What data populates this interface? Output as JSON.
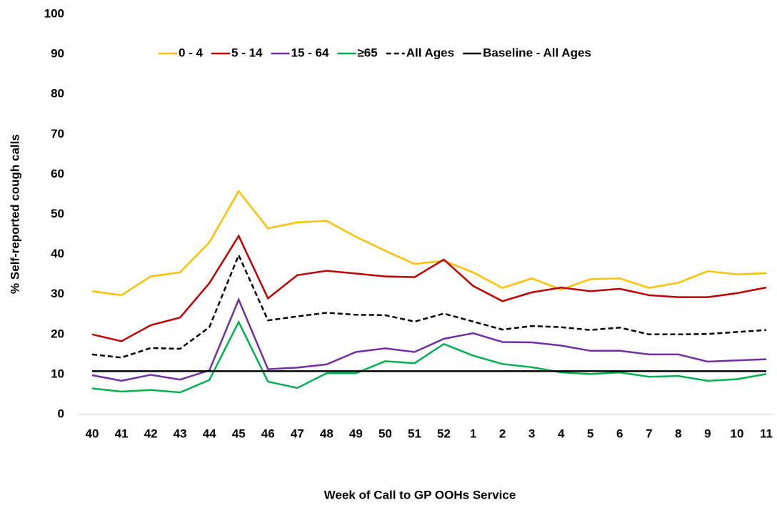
{
  "chart_data": {
    "type": "line",
    "x_label": "Week of Call to GP OOHs Service",
    "y_label": "% Self-reported cough calls",
    "categories": [
      "40",
      "41",
      "42",
      "43",
      "44",
      "45",
      "46",
      "47",
      "48",
      "49",
      "50",
      "51",
      "52",
      "1",
      "2",
      "3",
      "4",
      "5",
      "6",
      "7",
      "8",
      "9",
      "10",
      "11"
    ],
    "ylim": [
      0,
      100
    ],
    "yticks": [
      0,
      10,
      20,
      30,
      40,
      50,
      60,
      70,
      80,
      90,
      100
    ],
    "grid": false,
    "legend": "top",
    "series": [
      {
        "name": "0 - 4",
        "color": "#ffc000",
        "values": [
          30.8,
          29.8,
          34.5,
          35.5,
          43,
          55.8,
          46.5,
          48,
          48.4,
          44.4,
          40.9,
          37.6,
          38.4,
          35.5,
          31.6,
          34,
          31.2,
          33.8,
          34,
          31.6,
          32.9,
          35.8,
          35,
          35.3
        ]
      },
      {
        "name": "5 - 14",
        "color": "#c00000",
        "values": [
          20,
          18.3,
          22.3,
          24.2,
          32.8,
          44.6,
          29,
          34.8,
          35.9,
          35.2,
          34.5,
          34.3,
          38.7,
          32.1,
          28.3,
          30.5,
          31.7,
          30.8,
          31.4,
          29.8,
          29.3,
          29.3,
          30.3,
          31.7
        ]
      },
      {
        "name": "15 - 64",
        "color": "#7030a0",
        "values": [
          9.8,
          8.4,
          9.9,
          8.7,
          11,
          28.7,
          11.3,
          11.7,
          12.5,
          15.6,
          16.5,
          15.6,
          18.9,
          20.3,
          18.1,
          18,
          17.2,
          15.9,
          15.9,
          15,
          15,
          13.2,
          13.5,
          13.8
        ]
      },
      {
        "name": "≥65",
        "color": "#00b050",
        "values": [
          6.5,
          5.7,
          6.1,
          5.5,
          8.6,
          23.1,
          8.2,
          6.6,
          10.3,
          10.3,
          13.3,
          12.8,
          17.6,
          14.7,
          12.6,
          11.8,
          10.5,
          10.1,
          10.5,
          9.4,
          9.6,
          8.4,
          8.8,
          10.1
        ]
      },
      {
        "name": "All Ages",
        "color": "#000000",
        "dash": true,
        "values": [
          15,
          14.2,
          16.6,
          16.4,
          21.8,
          39.8,
          23.5,
          24.5,
          25.4,
          24.9,
          24.8,
          23.2,
          25.2,
          23.2,
          21.2,
          22.1,
          21.8,
          21.1,
          21.7,
          20,
          20,
          20.1,
          20.6,
          21.1
        ]
      },
      {
        "name": "Baseline - All Ages",
        "color": "#000000",
        "values": [
          10.8,
          10.8,
          10.8,
          10.8,
          10.8,
          10.8,
          10.8,
          10.8,
          10.8,
          10.8,
          10.8,
          10.8,
          10.8,
          10.8,
          10.8,
          10.8,
          10.8,
          10.8,
          10.8,
          10.8,
          10.8,
          10.8,
          10.8,
          10.8
        ]
      }
    ]
  }
}
